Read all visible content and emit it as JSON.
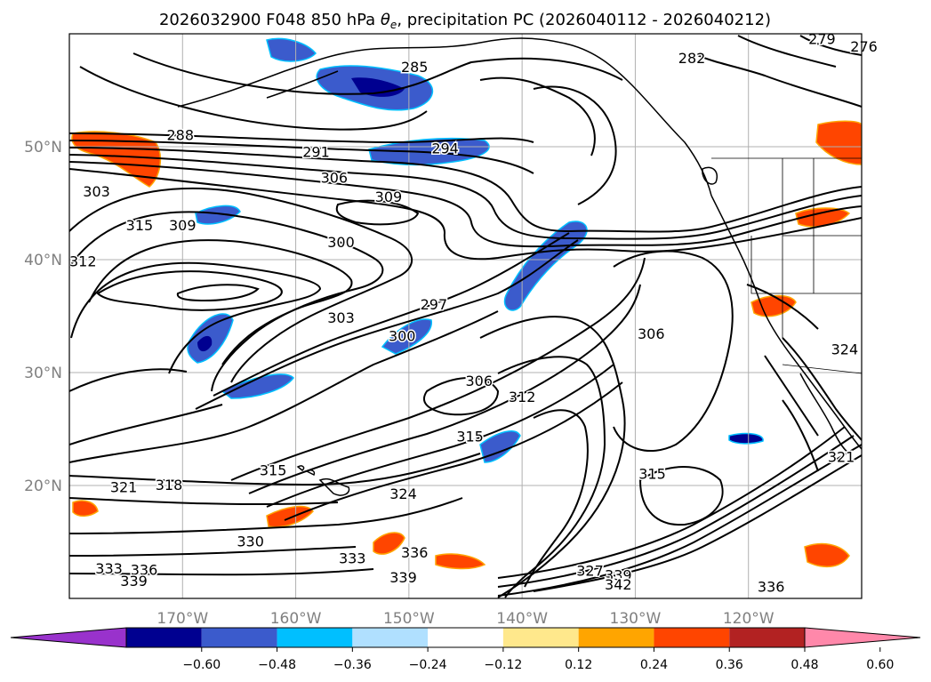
{
  "chart_data": {
    "type": "contour-map",
    "title": "2026032900 F048 850 hPa θe, precipitation PC (2026040112 - 2026040212)",
    "title_parts": {
      "prefix": "2026032900 F048 850 hPa ",
      "symbol": "θ",
      "subscript": "e",
      "suffix": ", precipitation PC (2026040112 - 2026040212)"
    },
    "map_extent": {
      "lon": [
        -180,
        -110
      ],
      "lat": [
        10,
        60
      ]
    },
    "grid": true,
    "x_ticks": [
      {
        "lon": -170,
        "label": "170°W"
      },
      {
        "lon": -160,
        "label": "160°W"
      },
      {
        "lon": -150,
        "label": "150°W"
      },
      {
        "lon": -140,
        "label": "140°W"
      },
      {
        "lon": -130,
        "label": "130°W"
      },
      {
        "lon": -120,
        "label": "120°W"
      }
    ],
    "y_ticks": [
      {
        "lat": 20,
        "label": "20°N"
      },
      {
        "lat": 30,
        "label": "30°N"
      },
      {
        "lat": 40,
        "label": "40°N"
      },
      {
        "lat": 50,
        "label": "50°N"
      }
    ],
    "colorbar": {
      "orientation": "horizontal",
      "extend": "both",
      "bounds": [
        -0.72,
        -0.6,
        -0.48,
        -0.36,
        -0.24,
        -0.12,
        0.12,
        0.24,
        0.36,
        0.48,
        0.6,
        0.72
      ],
      "colors": [
        "#9932cc",
        "#000090",
        "#3b5bcc",
        "#00bfff",
        "#b0e0ff",
        "#ffffff",
        "#ffe88c",
        "#ffa500",
        "#ff4500",
        "#b22222",
        "#ff88aa"
      ],
      "tick_values": [
        -0.6,
        -0.48,
        -0.36,
        -0.24,
        -0.12,
        0.12,
        0.24,
        0.36,
        0.48,
        0.6
      ],
      "tick_labels": [
        "−0.60",
        "−0.48",
        "−0.36",
        "−0.24",
        "−0.12",
        "0.12",
        "0.24",
        "0.36",
        "0.48",
        "0.60"
      ]
    },
    "theta_e_contours": {
      "units": "K",
      "labels": [
        {
          "value": "285",
          "lon": -149.5,
          "lat": 57.0
        },
        {
          "value": "279",
          "lon": -113.5,
          "lat": 59.5
        },
        {
          "value": "276",
          "lon": -109.8,
          "lat": 58.8
        },
        {
          "value": "282",
          "lon": -125.0,
          "lat": 57.8
        },
        {
          "value": "288",
          "lon": -170.2,
          "lat": 51.0
        },
        {
          "value": "291",
          "lon": -158.2,
          "lat": 49.5
        },
        {
          "value": "294",
          "lon": -146.8,
          "lat": 49.8
        },
        {
          "value": "306",
          "lon": -156.6,
          "lat": 47.2
        },
        {
          "value": "309",
          "lon": -151.8,
          "lat": 45.5
        },
        {
          "value": "303",
          "lon": -177.6,
          "lat": 46.0
        },
        {
          "value": "315",
          "lon": -173.8,
          "lat": 43.0
        },
        {
          "value": "309",
          "lon": -170.0,
          "lat": 43.0
        },
        {
          "value": "312",
          "lon": -178.8,
          "lat": 39.8
        },
        {
          "value": "300",
          "lon": -156.0,
          "lat": 41.5
        },
        {
          "value": "303",
          "lon": -156.0,
          "lat": 34.8
        },
        {
          "value": "300",
          "lon": -150.6,
          "lat": 33.2
        },
        {
          "value": "297",
          "lon": -147.8,
          "lat": 36.0
        },
        {
          "value": "306",
          "lon": -128.6,
          "lat": 33.4
        },
        {
          "value": "306",
          "lon": -143.8,
          "lat": 29.2
        },
        {
          "value": "312",
          "lon": -140.0,
          "lat": 27.8
        },
        {
          "value": "315",
          "lon": -144.6,
          "lat": 24.3
        },
        {
          "value": "315",
          "lon": -162.0,
          "lat": 21.3
        },
        {
          "value": "324",
          "lon": -150.5,
          "lat": 19.2
        },
        {
          "value": "321",
          "lon": -175.2,
          "lat": 19.8
        },
        {
          "value": "318",
          "lon": -171.2,
          "lat": 20.0
        },
        {
          "value": "315",
          "lon": -128.5,
          "lat": 21.0
        },
        {
          "value": "321",
          "lon": -111.8,
          "lat": 22.5
        },
        {
          "value": "330",
          "lon": -164.0,
          "lat": 15.0
        },
        {
          "value": "333",
          "lon": -155.0,
          "lat": 13.5
        },
        {
          "value": "336",
          "lon": -149.5,
          "lat": 14.0
        },
        {
          "value": "339",
          "lon": -150.5,
          "lat": 11.8
        },
        {
          "value": "333",
          "lon": -176.5,
          "lat": 12.6
        },
        {
          "value": "336",
          "lon": -173.4,
          "lat": 12.5
        },
        {
          "value": "339",
          "lon": -174.3,
          "lat": 11.5
        },
        {
          "value": "327",
          "lon": -134.0,
          "lat": 12.4
        },
        {
          "value": "339",
          "lon": -131.5,
          "lat": 12.0
        },
        {
          "value": "342",
          "lon": -131.5,
          "lat": 11.2
        },
        {
          "value": "336",
          "lon": -118.0,
          "lat": 11.0
        },
        {
          "value": "324",
          "lon": -111.5,
          "lat": 32.0
        }
      ]
    }
  }
}
